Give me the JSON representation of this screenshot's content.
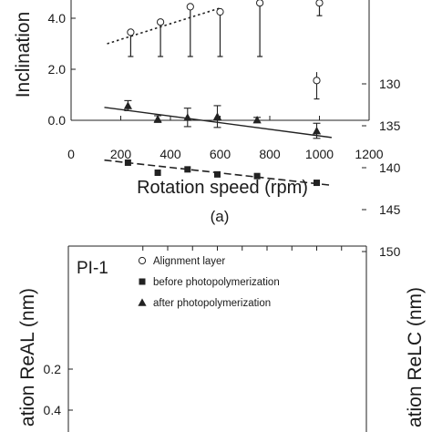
{
  "chart_data": [
    {
      "type": "scatter",
      "ylabel": "Inclination",
      "xlabel": "Rotation speed (rpm)",
      "panel_label": "(a)",
      "xlim": [
        0,
        1200
      ],
      "ylim": [
        0,
        5
      ],
      "xticks": [
        "0",
        "200",
        "400",
        "600",
        "800",
        "1000",
        "1200"
      ],
      "yticks": [
        "0.0",
        "2.0",
        "4.0"
      ],
      "ytick_values": [
        0,
        2,
        4
      ],
      "series": [
        {
          "marker": "open-circle",
          "points": [
            {
              "x": 240,
              "y": 3.45,
              "err_low": 0.95,
              "err_high": 0
            },
            {
              "x": 360,
              "y": 3.85,
              "err_low": 1.35,
              "err_high": 0
            },
            {
              "x": 480,
              "y": 4.45,
              "err_low": 1.95,
              "err_high": 0
            },
            {
              "x": 600,
              "y": 4.25,
              "err_low": 1.75,
              "err_high": 0
            },
            {
              "x": 760,
              "y": 4.6,
              "err_low": 2.1,
              "err_high": 0
            },
            {
              "x": 1000,
              "y": 4.6,
              "err_low": 0.5,
              "err_high": 0
            }
          ]
        }
      ],
      "fit_line": {
        "x": [
          145,
          600
        ],
        "y": [
          3.0,
          4.4
        ]
      },
      "top_line": {
        "x": [
          145,
          290
        ],
        "y": [
          4.75,
          5.0
        ]
      }
    },
    {
      "type": "scatter",
      "title": "PI-1",
      "ylabel_left": "ation ReAL (nm)",
      "ylabel_right": "ation ReLC (nm)",
      "left_ylim": [
        0.2,
        1.4
      ],
      "left_yticks": [
        "0.4",
        "0.2"
      ],
      "left_ytick_values": [
        0.4,
        0.2
      ],
      "right_ylim": [
        128,
        150
      ],
      "right_yticks": [
        "150",
        "145",
        "140",
        "135",
        "130"
      ],
      "right_ytick_values": [
        150,
        145,
        140,
        135,
        130
      ],
      "xlim": [
        0,
        1200
      ],
      "legend": [
        {
          "marker": "open-circle",
          "label": "Alignment layer"
        },
        {
          "marker": "filled-square",
          "label": "before photopolymerization"
        },
        {
          "marker": "filled-triangle",
          "label": "after photopolymerization"
        }
      ],
      "series": [
        {
          "name": "before photopolymerization",
          "marker": "filled-square",
          "axis": "right",
          "points": [
            {
              "x": 240,
              "y": 139.4
            },
            {
              "x": 360,
              "y": 140.6
            },
            {
              "x": 480,
              "y": 140.2
            },
            {
              "x": 600,
              "y": 140.8
            },
            {
              "x": 760,
              "y": 141.0
            },
            {
              "x": 1000,
              "y": 141.8
            }
          ],
          "fit": {
            "x": [
              145,
              1060
            ],
            "y": [
              139.1,
              142.1
            ]
          }
        },
        {
          "name": "after photopolymerization",
          "marker": "filled-triangle",
          "axis": "right",
          "points": [
            {
              "x": 240,
              "y": 132.6,
              "err": 0.6
            },
            {
              "x": 360,
              "y": 134.2,
              "err": 0.4
            },
            {
              "x": 480,
              "y": 134.0,
              "err": 1.1
            },
            {
              "x": 600,
              "y": 133.9,
              "err": 1.3
            },
            {
              "x": 760,
              "y": 134.3,
              "err": 0.3
            },
            {
              "x": 1000,
              "y": 135.6,
              "err": 0.9
            }
          ],
          "fit": {
            "x": [
              145,
              1060
            ],
            "y": [
              132.8,
              136.4
            ]
          }
        },
        {
          "name": "Alignment layer",
          "marker": "open-circle",
          "axis": "right",
          "points": [
            {
              "x": 1000,
              "y": 129.6,
              "err_high": 2.2,
              "err_low": 1.0
            }
          ]
        }
      ]
    }
  ]
}
